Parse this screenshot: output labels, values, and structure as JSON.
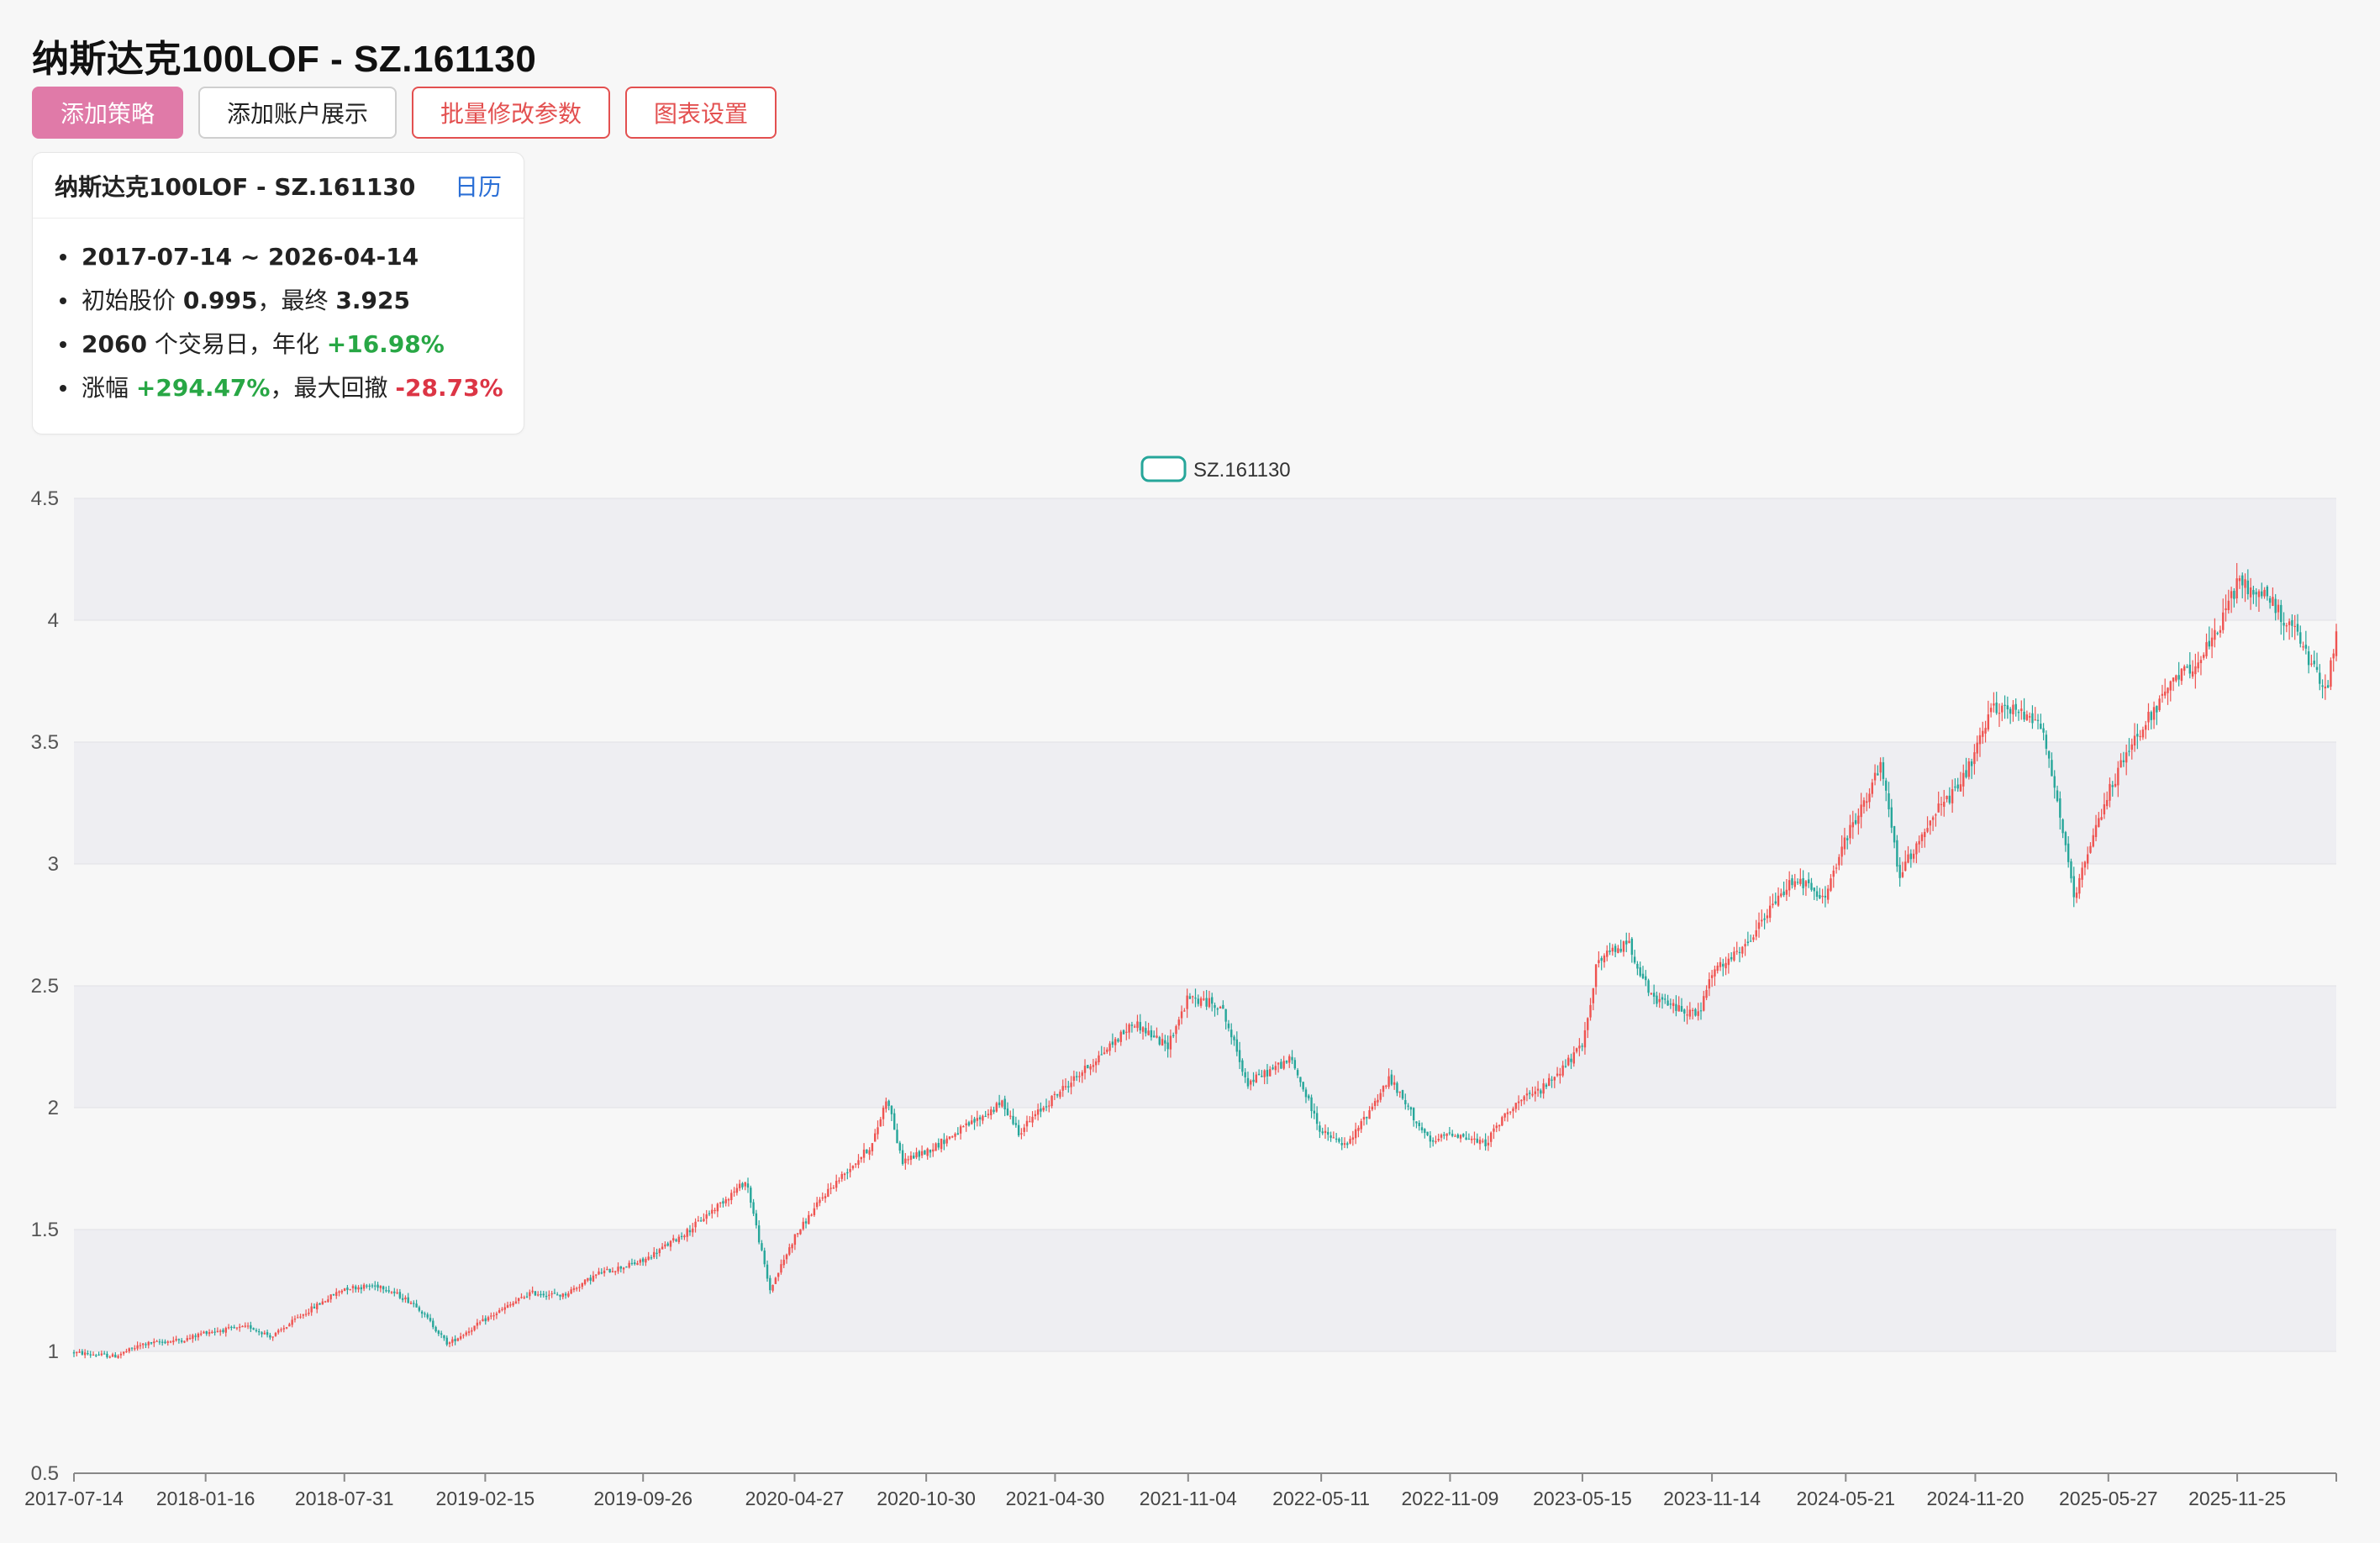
{
  "page": {
    "title": "纳斯达克100LOF - SZ.161130"
  },
  "toolbar": {
    "add_strategy": "添加策略",
    "add_account_display": "添加账户展示",
    "batch_edit_params": "批量修改参数",
    "chart_settings": "图表设置"
  },
  "summary_card": {
    "title": "纳斯达克100LOF - SZ.161130",
    "calendar_link": "日历",
    "date_range": "2017-07-14 ~ 2026-04-14",
    "initial_price_label": "初始股价 ",
    "initial_price": "0.995",
    "final_label": "，最终 ",
    "final_price": "3.925",
    "trading_days": "2060",
    "trading_days_label": " 个交易日，年化 ",
    "annualized": "+16.98%",
    "change_label": "涨幅 ",
    "change": "+294.47%",
    "max_drawdown_label": "，最大回撤 ",
    "max_drawdown": "-28.73%"
  },
  "colors": {
    "up": "#ef5350",
    "down": "#26a69a",
    "band": "#eeeef2",
    "gridline": "#e0e0e6",
    "accent": "#e07aa8",
    "danger": "#e35050",
    "link": "#2b6fd6",
    "positive": "#28a745",
    "negative": "#dc3545"
  },
  "chart_data": {
    "type": "candlestick",
    "legend": {
      "label": "SZ.161130",
      "placement": "top-center"
    },
    "ylim": [
      0.5,
      4.5
    ],
    "y_ticks": [
      "0.5",
      "1",
      "1.5",
      "2",
      "2.5",
      "3",
      "3.5",
      "4",
      "4.5"
    ],
    "x_tick_labels": [
      "2017-07-14",
      "2018-01-16",
      "2018-07-31",
      "2019-02-15",
      "2019-09-26",
      "2020-04-27",
      "2020-10-30",
      "2021-04-30",
      "2021-11-04",
      "2022-05-11",
      "2022-11-09",
      "2023-05-15",
      "2023-11-14",
      "2024-05-21",
      "2024-11-20",
      "2025-05-27",
      "2025-11-25"
    ],
    "grid": "alternating-bands",
    "close_trend": [
      [
        "2017-07-14",
        0.995
      ],
      [
        "2017-09-10",
        0.98
      ],
      [
        "2017-10-20",
        1.03
      ],
      [
        "2017-12-20",
        1.05
      ],
      [
        "2018-01-16",
        1.08
      ],
      [
        "2018-03-20",
        1.1
      ],
      [
        "2018-04-20",
        1.06
      ],
      [
        "2018-06-01",
        1.15
      ],
      [
        "2018-07-31",
        1.26
      ],
      [
        "2018-09-20",
        1.27
      ],
      [
        "2018-11-10",
        1.19
      ],
      [
        "2018-12-24",
        1.03
      ],
      [
        "2019-02-15",
        1.13
      ],
      [
        "2019-04-20",
        1.24
      ],
      [
        "2019-06-05",
        1.23
      ],
      [
        "2019-07-25",
        1.32
      ],
      [
        "2019-09-26",
        1.37
      ],
      [
        "2019-12-01",
        1.5
      ],
      [
        "2020-02-19",
        1.7
      ],
      [
        "2020-03-23",
        1.25
      ],
      [
        "2020-04-27",
        1.47
      ],
      [
        "2020-06-10",
        1.65
      ],
      [
        "2020-08-15",
        1.85
      ],
      [
        "2020-09-05",
        2.05
      ],
      [
        "2020-09-25",
        1.78
      ],
      [
        "2020-10-30",
        1.82
      ],
      [
        "2021-01-10",
        1.95
      ],
      [
        "2021-02-15",
        2.02
      ],
      [
        "2021-03-10",
        1.9
      ],
      [
        "2021-04-30",
        2.05
      ],
      [
        "2021-06-20",
        2.18
      ],
      [
        "2021-08-20",
        2.35
      ],
      [
        "2021-10-05",
        2.25
      ],
      [
        "2021-11-04",
        2.45
      ],
      [
        "2021-12-20",
        2.42
      ],
      [
        "2022-01-27",
        2.1
      ],
      [
        "2022-03-29",
        2.2
      ],
      [
        "2022-05-11",
        1.9
      ],
      [
        "2022-06-16",
        1.84
      ],
      [
        "2022-08-15",
        2.12
      ],
      [
        "2022-10-13",
        1.85
      ],
      [
        "2022-11-09",
        1.9
      ],
      [
        "2022-12-28",
        1.85
      ],
      [
        "2023-02-02",
        2.0
      ],
      [
        "2023-03-20",
        2.08
      ],
      [
        "2023-05-15",
        2.25
      ],
      [
        "2023-06-05",
        2.6
      ],
      [
        "2023-07-19",
        2.68
      ],
      [
        "2023-08-20",
        2.45
      ],
      [
        "2023-10-26",
        2.38
      ],
      [
        "2023-11-14",
        2.55
      ],
      [
        "2023-12-29",
        2.65
      ],
      [
        "2024-02-01",
        2.8
      ],
      [
        "2024-03-10",
        2.95
      ],
      [
        "2024-04-19",
        2.85
      ],
      [
        "2024-05-21",
        3.1
      ],
      [
        "2024-07-10",
        3.4
      ],
      [
        "2024-08-05",
        2.95
      ],
      [
        "2024-09-20",
        3.2
      ],
      [
        "2024-10-25",
        3.3
      ],
      [
        "2024-11-20",
        3.45
      ],
      [
        "2024-12-16",
        3.65
      ],
      [
        "2025-02-19",
        3.6
      ],
      [
        "2025-03-20",
        3.2
      ],
      [
        "2025-04-08",
        2.85
      ],
      [
        "2025-05-27",
        3.3
      ],
      [
        "2025-07-10",
        3.55
      ],
      [
        "2025-08-30",
        3.75
      ],
      [
        "2025-10-20",
        3.9
      ],
      [
        "2025-11-25",
        4.15
      ],
      [
        "2026-01-05",
        4.1
      ],
      [
        "2026-02-15",
        3.95
      ],
      [
        "2026-03-30",
        3.7
      ],
      [
        "2026-04-14",
        3.925
      ]
    ]
  }
}
